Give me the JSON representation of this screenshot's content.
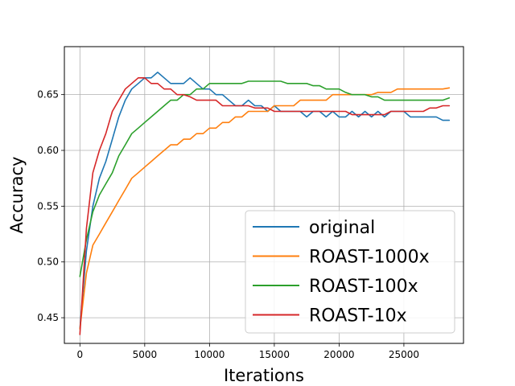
{
  "chart_data": {
    "type": "line",
    "title": "",
    "xlabel": "Iterations",
    "ylabel": "Accuracy",
    "xlim": [
      -1200,
      29600
    ],
    "ylim": [
      0.427,
      0.693
    ],
    "xticks": [
      0,
      5000,
      10000,
      15000,
      20000,
      25000
    ],
    "yticks": [
      0.45,
      0.5,
      0.55,
      0.6,
      0.65
    ],
    "ytick_labels": [
      "0.45",
      "0.50",
      "0.55",
      "0.60",
      "0.65"
    ],
    "grid": true,
    "legend_position": "lower-right",
    "series": [
      {
        "name": "original",
        "color": "#1f77b4",
        "x": [
          0,
          500,
          1000,
          1500,
          2000,
          2500,
          3000,
          3500,
          4000,
          4500,
          5000,
          5500,
          6000,
          6500,
          7000,
          7500,
          8000,
          8500,
          9000,
          9500,
          10000,
          10500,
          11000,
          11500,
          12000,
          12500,
          13000,
          13500,
          14000,
          14500,
          15000,
          15500,
          16000,
          16500,
          17000,
          17500,
          18000,
          18500,
          19000,
          19500,
          20000,
          20500,
          21000,
          21500,
          22000,
          22500,
          23000,
          23500,
          24000,
          24500,
          25000,
          25500,
          26000,
          26500,
          27000,
          27500,
          28000,
          28500
        ],
        "y": [
          0.44,
          0.51,
          0.55,
          0.575,
          0.59,
          0.61,
          0.63,
          0.645,
          0.655,
          0.66,
          0.665,
          0.665,
          0.67,
          0.665,
          0.66,
          0.66,
          0.66,
          0.665,
          0.66,
          0.655,
          0.655,
          0.65,
          0.65,
          0.645,
          0.64,
          0.64,
          0.645,
          0.64,
          0.64,
          0.635,
          0.64,
          0.635,
          0.635,
          0.635,
          0.635,
          0.63,
          0.635,
          0.635,
          0.63,
          0.635,
          0.63,
          0.63,
          0.635,
          0.63,
          0.635,
          0.63,
          0.635,
          0.63,
          0.635,
          0.635,
          0.635,
          0.63,
          0.63,
          0.63,
          0.63,
          0.63,
          0.627,
          0.627
        ]
      },
      {
        "name": "ROAST-1000x",
        "color": "#ff7f0e",
        "x": [
          0,
          500,
          1000,
          1500,
          2000,
          2500,
          3000,
          3500,
          4000,
          4500,
          5000,
          5500,
          6000,
          6500,
          7000,
          7500,
          8000,
          8500,
          9000,
          9500,
          10000,
          10500,
          11000,
          11500,
          12000,
          12500,
          13000,
          13500,
          14000,
          14500,
          15000,
          15500,
          16000,
          16500,
          17000,
          17500,
          18000,
          18500,
          19000,
          19500,
          20000,
          20500,
          21000,
          21500,
          22000,
          22500,
          23000,
          23500,
          24000,
          24500,
          25000,
          25500,
          26000,
          26500,
          27000,
          27500,
          28000,
          28500
        ],
        "y": [
          0.44,
          0.49,
          0.515,
          0.525,
          0.535,
          0.545,
          0.555,
          0.565,
          0.575,
          0.58,
          0.585,
          0.59,
          0.595,
          0.6,
          0.605,
          0.605,
          0.61,
          0.61,
          0.615,
          0.615,
          0.62,
          0.62,
          0.625,
          0.625,
          0.63,
          0.63,
          0.635,
          0.635,
          0.635,
          0.635,
          0.64,
          0.64,
          0.64,
          0.64,
          0.645,
          0.645,
          0.645,
          0.645,
          0.645,
          0.65,
          0.65,
          0.65,
          0.65,
          0.65,
          0.65,
          0.65,
          0.652,
          0.652,
          0.652,
          0.655,
          0.655,
          0.655,
          0.655,
          0.655,
          0.655,
          0.655,
          0.655,
          0.656
        ]
      },
      {
        "name": "ROAST-100x",
        "color": "#2ca02c",
        "x": [
          0,
          500,
          1000,
          1500,
          2000,
          2500,
          3000,
          3500,
          4000,
          4500,
          5000,
          5500,
          6000,
          6500,
          7000,
          7500,
          8000,
          8500,
          9000,
          9500,
          10000,
          10500,
          11000,
          11500,
          12000,
          12500,
          13000,
          13500,
          14000,
          14500,
          15000,
          15500,
          16000,
          16500,
          17000,
          17500,
          18000,
          18500,
          19000,
          19500,
          20000,
          20500,
          21000,
          21500,
          22000,
          22500,
          23000,
          23500,
          24000,
          24500,
          25000,
          25500,
          26000,
          26500,
          27000,
          27500,
          28000,
          28500
        ],
        "y": [
          0.487,
          0.52,
          0.545,
          0.56,
          0.57,
          0.58,
          0.595,
          0.605,
          0.615,
          0.62,
          0.625,
          0.63,
          0.635,
          0.64,
          0.645,
          0.645,
          0.65,
          0.65,
          0.655,
          0.655,
          0.66,
          0.66,
          0.66,
          0.66,
          0.66,
          0.66,
          0.662,
          0.662,
          0.662,
          0.662,
          0.662,
          0.662,
          0.66,
          0.66,
          0.66,
          0.66,
          0.658,
          0.658,
          0.655,
          0.655,
          0.655,
          0.652,
          0.65,
          0.65,
          0.65,
          0.648,
          0.648,
          0.645,
          0.645,
          0.645,
          0.645,
          0.645,
          0.645,
          0.645,
          0.645,
          0.645,
          0.645,
          0.647
        ]
      },
      {
        "name": "ROAST-10x",
        "color": "#d62728",
        "x": [
          0,
          500,
          1000,
          1500,
          2000,
          2500,
          3000,
          3500,
          4000,
          4500,
          5000,
          5500,
          6000,
          6500,
          7000,
          7500,
          8000,
          8500,
          9000,
          9500,
          10000,
          10500,
          11000,
          11500,
          12000,
          12500,
          13000,
          13500,
          14000,
          14500,
          15000,
          15500,
          16000,
          16500,
          17000,
          17500,
          18000,
          18500,
          19000,
          19500,
          20000,
          20500,
          21000,
          21500,
          22000,
          22500,
          23000,
          23500,
          24000,
          24500,
          25000,
          25500,
          26000,
          26500,
          27000,
          27500,
          28000,
          28500
        ],
        "y": [
          0.435,
          0.53,
          0.58,
          0.6,
          0.615,
          0.635,
          0.645,
          0.655,
          0.66,
          0.665,
          0.665,
          0.66,
          0.66,
          0.655,
          0.655,
          0.65,
          0.65,
          0.648,
          0.645,
          0.645,
          0.645,
          0.645,
          0.64,
          0.64,
          0.64,
          0.64,
          0.64,
          0.638,
          0.638,
          0.638,
          0.635,
          0.635,
          0.635,
          0.635,
          0.635,
          0.635,
          0.635,
          0.635,
          0.635,
          0.635,
          0.635,
          0.635,
          0.632,
          0.632,
          0.632,
          0.632,
          0.632,
          0.632,
          0.635,
          0.635,
          0.635,
          0.635,
          0.635,
          0.635,
          0.638,
          0.638,
          0.64,
          0.64
        ]
      }
    ]
  }
}
